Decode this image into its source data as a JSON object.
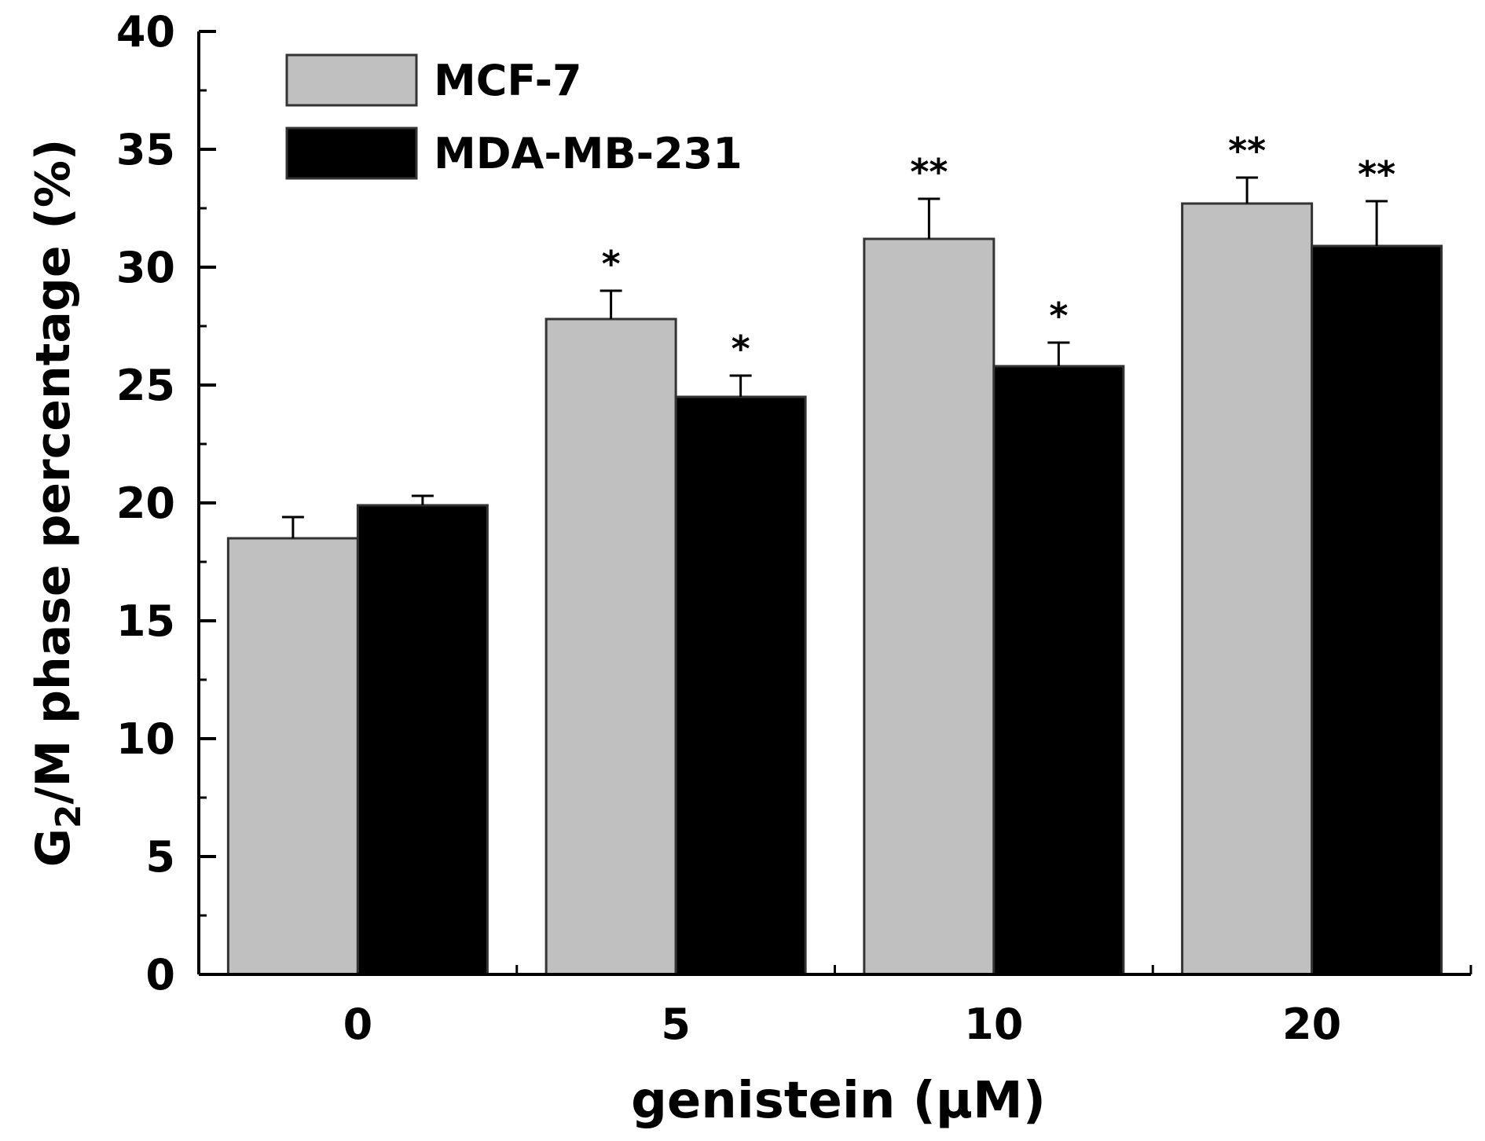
{
  "chart_data": {
    "type": "bar",
    "title": "",
    "xlabel": "genistein (μM)",
    "ylabel": {
      "prefix": "G",
      "subscript": "2",
      "rest": "/M phase percentage (%)"
    },
    "categories": [
      "0",
      "5",
      "10",
      "20"
    ],
    "ylim": [
      0,
      40
    ],
    "yticks": [
      0,
      5,
      10,
      15,
      20,
      25,
      30,
      35,
      40
    ],
    "grid": false,
    "legend_position": "top-left",
    "series": [
      {
        "name": "MCF-7",
        "color": "#c0c0c0",
        "values": [
          18.5,
          27.8,
          31.2,
          32.7
        ],
        "errors": [
          0.9,
          1.2,
          1.7,
          1.1
        ],
        "significance": [
          "",
          "*",
          "**",
          "**"
        ]
      },
      {
        "name": "MDA-MB-231",
        "color": "#000000",
        "values": [
          19.9,
          24.5,
          25.8,
          30.9
        ],
        "errors": [
          0.4,
          0.9,
          1.0,
          1.9
        ],
        "significance": [
          "",
          "*",
          "*",
          "**"
        ]
      }
    ]
  }
}
